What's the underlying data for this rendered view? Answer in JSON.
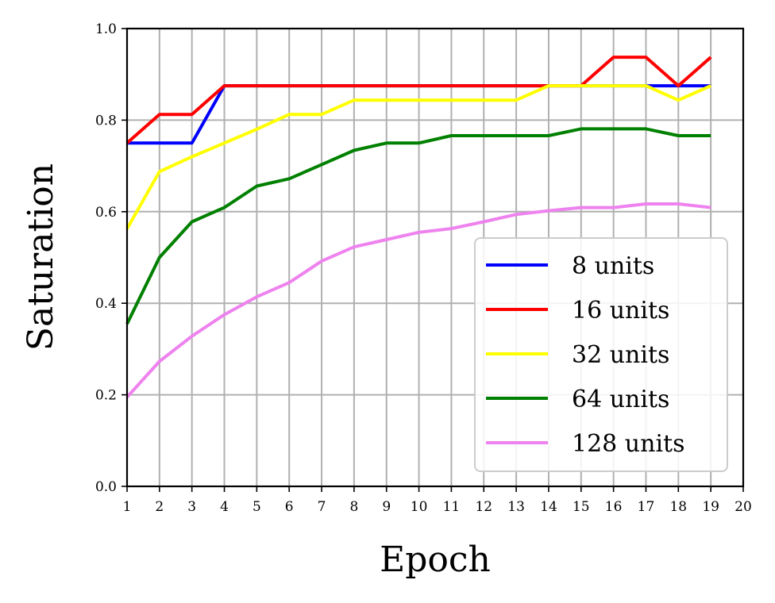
{
  "chart_data": {
    "type": "line",
    "title": "",
    "xlabel": "Epoch",
    "ylabel": "Saturation",
    "xlim": [
      1,
      20
    ],
    "ylim": [
      0.0,
      1.0
    ],
    "xticks": [
      "1",
      "2",
      "3",
      "4",
      "5",
      "6",
      "7",
      "8",
      "9",
      "10",
      "11",
      "12",
      "13",
      "14",
      "15",
      "16",
      "17",
      "18",
      "19",
      "20"
    ],
    "yticks": [
      "0.0",
      "0.2",
      "0.4",
      "0.6",
      "0.8",
      "1.0"
    ],
    "grid": true,
    "legend_position": "lower-right",
    "x": [
      1,
      2,
      3,
      4,
      5,
      6,
      7,
      8,
      9,
      10,
      11,
      12,
      13,
      14,
      15,
      16,
      17,
      18,
      19
    ],
    "series": [
      {
        "name": "8 units",
        "color": "#0000ff",
        "values": [
          0.75,
          0.75,
          0.75,
          0.875,
          0.875,
          0.875,
          0.875,
          0.875,
          0.875,
          0.875,
          0.875,
          0.875,
          0.875,
          0.875,
          0.875,
          0.875,
          0.875,
          0.875,
          0.875
        ]
      },
      {
        "name": "16 units",
        "color": "#ff0000",
        "values": [
          0.75,
          0.8125,
          0.8125,
          0.875,
          0.875,
          0.875,
          0.875,
          0.875,
          0.875,
          0.875,
          0.875,
          0.875,
          0.875,
          0.875,
          0.875,
          0.9375,
          0.9375,
          0.875,
          0.9375
        ]
      },
      {
        "name": "32 units",
        "color": "#ffff00",
        "values": [
          0.5625,
          0.6875,
          0.72,
          0.75,
          0.78,
          0.8125,
          0.8125,
          0.84375,
          0.84375,
          0.84375,
          0.84375,
          0.84375,
          0.84375,
          0.875,
          0.875,
          0.875,
          0.875,
          0.84375,
          0.875
        ]
      },
      {
        "name": "64 units",
        "color": "#008000",
        "values": [
          0.355,
          0.5,
          0.578,
          0.609,
          0.656,
          0.672,
          0.703,
          0.734,
          0.75,
          0.75,
          0.766,
          0.766,
          0.766,
          0.766,
          0.781,
          0.781,
          0.781,
          0.766,
          0.766
        ]
      },
      {
        "name": "128 units",
        "color": "#ee82ee",
        "values": [
          0.195,
          0.273,
          0.328,
          0.375,
          0.414,
          0.445,
          0.492,
          0.523,
          0.539,
          0.555,
          0.563,
          0.578,
          0.594,
          0.602,
          0.609,
          0.609,
          0.617,
          0.617,
          0.609
        ]
      }
    ]
  }
}
